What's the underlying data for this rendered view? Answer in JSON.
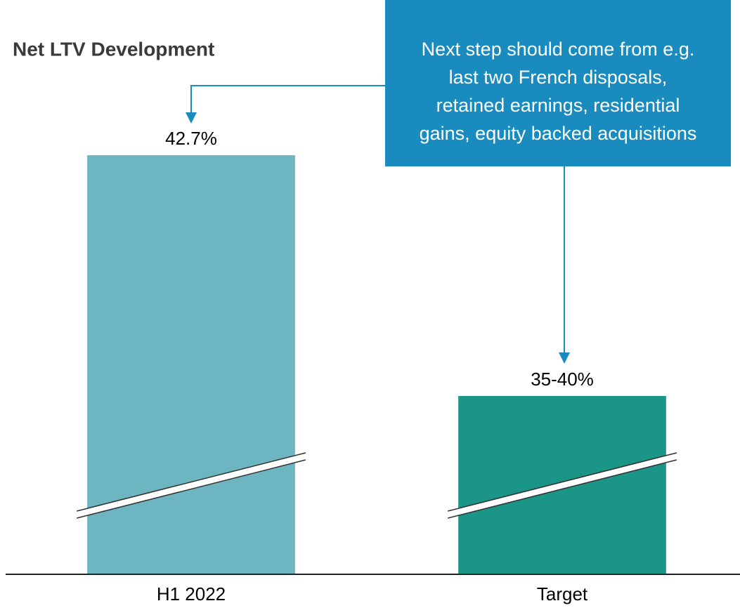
{
  "chart_data": {
    "type": "bar",
    "title": "Net LTV Development",
    "categories": [
      "H1 2022",
      "Target"
    ],
    "values": [
      42.7,
      40
    ],
    "value_labels": [
      "42.7%",
      "35-40%"
    ],
    "colors": [
      "#6db5c0",
      "#1a9587"
    ],
    "ylim": [
      38,
      44
    ],
    "annotation": [
      "Next step should come from e.g.",
      "last two French disposals,",
      "retained earnings, residential",
      "gains, equity backed acquisitions"
    ]
  }
}
